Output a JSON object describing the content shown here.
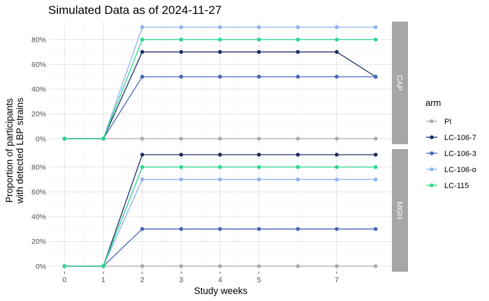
{
  "chart_data": {
    "type": "line",
    "title": "Simulated Data as of 2024-11-27",
    "xlabel": "Study weeks",
    "ylabel_lines": [
      "Proportion of participants",
      "with detected LBP strains"
    ],
    "x_ticks": [
      0,
      1,
      2,
      3,
      4,
      5,
      7
    ],
    "xlim": [
      -0.4,
      8.4
    ],
    "y_ticks": [
      0,
      0.2,
      0.4,
      0.6,
      0.8
    ],
    "y_tick_labels": [
      "0%",
      "20%",
      "40%",
      "60%",
      "80%"
    ],
    "ylim": [
      -0.045,
      0.945
    ],
    "grid": true,
    "legend_title": "arm",
    "legend_position": "right",
    "x": [
      0,
      1,
      2,
      3,
      4,
      5,
      6,
      7,
      8
    ],
    "facets": [
      {
        "label": "CAP",
        "series": [
          {
            "name": "PI",
            "color": "#aaaaaa",
            "values": [
              0,
              0,
              0,
              0,
              0,
              0,
              0,
              0,
              0
            ]
          },
          {
            "name": "LC-106-7",
            "color": "#1b2f60",
            "values": [
              0,
              0,
              0.7,
              0.7,
              0.7,
              0.7,
              0.7,
              0.7,
              0.5
            ]
          },
          {
            "name": "LC-106-3",
            "color": "#4a66b8",
            "values": [
              0,
              0,
              0.5,
              0.5,
              0.5,
              0.5,
              0.5,
              0.5,
              0.5
            ]
          },
          {
            "name": "LC-106-o",
            "color": "#8fb1f0",
            "values": [
              0,
              0,
              0.9,
              0.9,
              0.9,
              0.9,
              0.9,
              0.9,
              0.9
            ]
          },
          {
            "name": "LC-115",
            "color": "#28d98a",
            "values": [
              0,
              0,
              0.8,
              0.8,
              0.8,
              0.8,
              0.8,
              0.8,
              0.8
            ]
          }
        ]
      },
      {
        "label": "MGH",
        "series": [
          {
            "name": "PI",
            "color": "#aaaaaa",
            "values": [
              0,
              0,
              0,
              0,
              0,
              0,
              0,
              0,
              0
            ]
          },
          {
            "name": "LC-106-7",
            "color": "#1b2f60",
            "values": [
              0,
              0,
              0.9,
              0.9,
              0.9,
              0.9,
              0.9,
              0.9,
              0.9
            ]
          },
          {
            "name": "LC-106-3",
            "color": "#4a66b8",
            "values": [
              0,
              0,
              0.3,
              0.3,
              0.3,
              0.3,
              0.3,
              0.3,
              0.3
            ]
          },
          {
            "name": "LC-106-o",
            "color": "#8fb1f0",
            "values": [
              0,
              0,
              0.7,
              0.7,
              0.7,
              0.7,
              0.7,
              0.7,
              0.7
            ]
          },
          {
            "name": "LC-115",
            "color": "#28d98a",
            "values": [
              0,
              0,
              0.8,
              0.8,
              0.8,
              0.8,
              0.8,
              0.8,
              0.8
            ]
          }
        ]
      }
    ],
    "legend": [
      {
        "name": "PI",
        "color": "#aaaaaa"
      },
      {
        "name": "LC-106-7",
        "color": "#1b2f60"
      },
      {
        "name": "LC-106-3",
        "color": "#4a66b8"
      },
      {
        "name": "LC-106-o",
        "color": "#8fb1f0"
      },
      {
        "name": "LC-115",
        "color": "#28d98a"
      }
    ],
    "colors": {
      "strip_background": "#a6a6a6"
    }
  }
}
